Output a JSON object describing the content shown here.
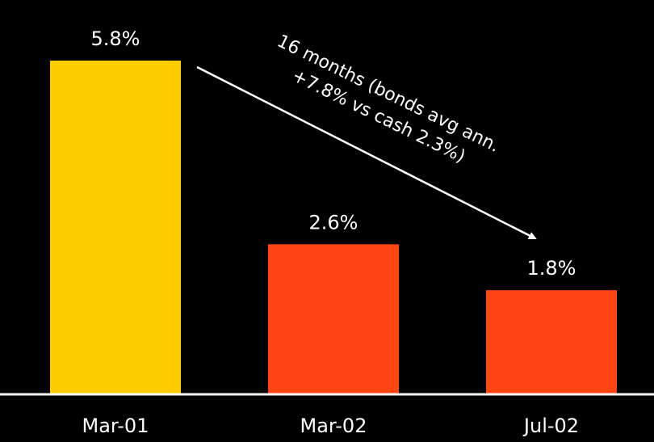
{
  "chart_data": {
    "type": "bar",
    "categories": [
      "Mar-01",
      "Mar-02",
      "Jul-02"
    ],
    "values": [
      5.8,
      2.6,
      1.8
    ],
    "value_labels": [
      "5.8%",
      "2.6%",
      "1.8%"
    ],
    "bar_colors": [
      "#FFCC00",
      "#FF4512",
      "#FF4512"
    ],
    "title": "",
    "xlabel": "",
    "ylabel": "",
    "ylim": [
      0,
      5.8
    ],
    "grid": false,
    "annotation": {
      "line1": "16 months (bonds  avg ann.",
      "line2": "+7.8% vs cash 2.3%)",
      "from_category": "Mar-01",
      "to_category": "Jul-02"
    }
  },
  "colors": {
    "background": "#000000",
    "text": "#FFFFFF",
    "axis": "#FFFFFF",
    "arrow": "#FFFFFF"
  }
}
